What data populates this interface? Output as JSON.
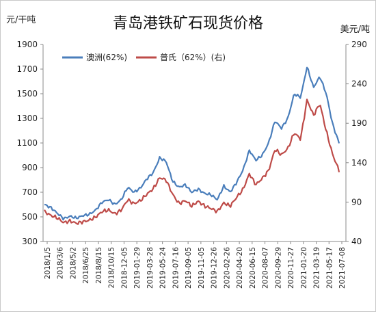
{
  "chart_data": {
    "type": "line",
    "title": "青岛港铁矿石现货价格",
    "left_axis_unit": "元/干吨",
    "right_axis_unit": "美元/吨",
    "y_left_range": [
      300,
      1900
    ],
    "y_left_ticks": [
      "1900",
      "1700",
      "1500",
      "1300",
      "1100",
      "900",
      "700",
      "500",
      "300"
    ],
    "y_right_range": [
      40,
      290
    ],
    "y_right_ticks": [
      "290",
      "240",
      "190",
      "140",
      "90",
      "40"
    ],
    "x_tick_labels": [
      "2018/1/5",
      "2018/3/6",
      "2018/5/2",
      "2018/6/25",
      "2018/8/15",
      "2018/10/15",
      "2018-12-05",
      "2019-01-29",
      "2019-03-28",
      "2019-05-24",
      "2019-07-16",
      "2019-09-05",
      "2019-11-05",
      "2019-12-26",
      "2020-02-26",
      "2020-04-20",
      "2020-06-15",
      "2020-08-07",
      "2020-09-29",
      "2020-11-27",
      "2021-01-20",
      "2021-03-19",
      "2021-05-17",
      "2021-07-08"
    ],
    "grid": false,
    "legend_position": "top-left",
    "series": [
      {
        "name": "澳洲(62%)",
        "axis": "left",
        "color": "#4a7ebb",
        "values": [
          600,
          575,
          530,
          485,
          505,
          490,
          510,
          520,
          555,
          620,
          640,
          600,
          640,
          740,
          700,
          735,
          810,
          860,
          980,
          950,
          790,
          740,
          760,
          700,
          725,
          690,
          680,
          640,
          750,
          700,
          780,
          880,
          1040,
          960,
          1000,
          1100,
          1280,
          1220,
          1300,
          1500,
          1470,
          1720,
          1550,
          1640,
          1500,
          1250,
          1100
        ]
      },
      {
        "name": "普氏（62%）(右)",
        "axis": "right",
        "color": "#be4b48",
        "values": [
          78,
          73,
          70,
          64,
          66,
          63,
          65,
          67,
          71,
          78,
          80,
          75,
          80,
          93,
          88,
          92,
          100,
          107,
          121,
          118,
          100,
          88,
          92,
          85,
          91,
          85,
          82,
          78,
          89,
          85,
          96,
          106,
          126,
          112,
          120,
          130,
          157,
          150,
          158,
          178,
          170,
          220,
          200,
          215,
          180,
          150,
          130
        ]
      }
    ]
  }
}
